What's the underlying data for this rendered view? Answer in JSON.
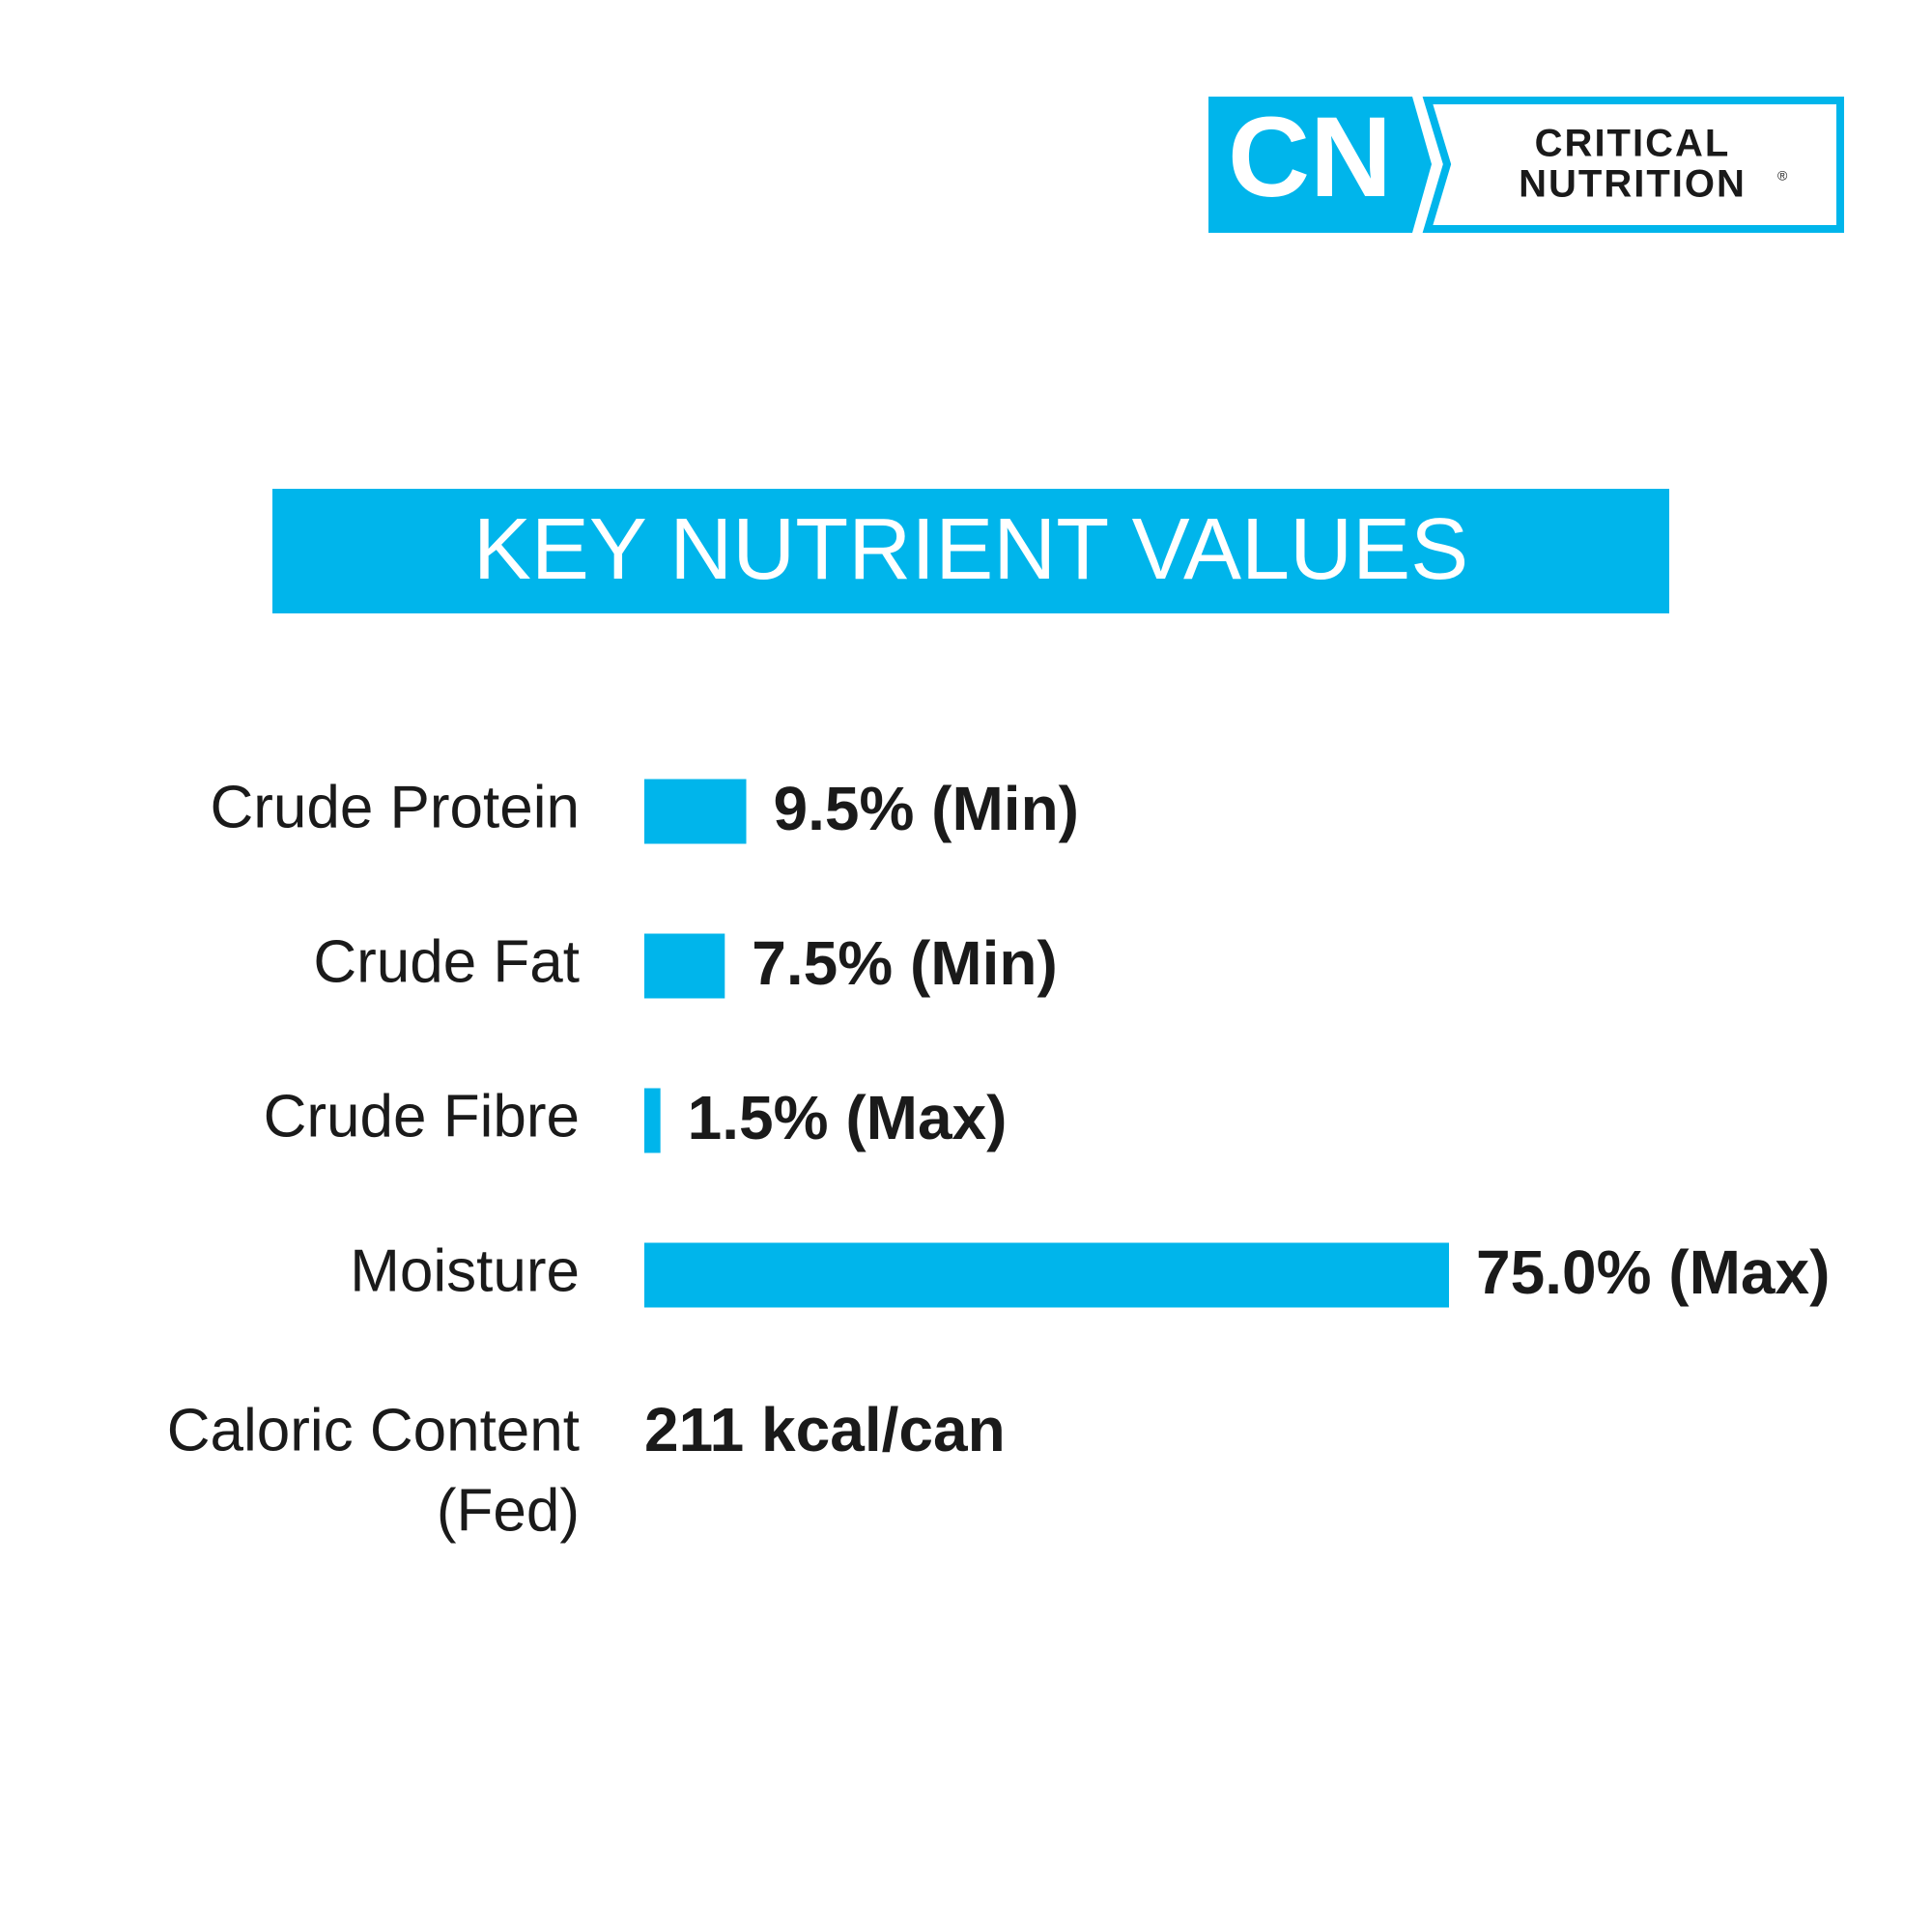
{
  "logo": {
    "mark": "CN",
    "line1": "CRITICAL",
    "line2": "NUTRITION",
    "reg": "®"
  },
  "chart_data": {
    "type": "bar",
    "orientation": "horizontal",
    "title": "KEY NUTRIENT VALUES",
    "categories": [
      "Crude Protein",
      "Crude Fat",
      "Crude Fibre",
      "Moisture"
    ],
    "values": [
      9.5,
      7.5,
      1.5,
      75.0
    ],
    "value_labels": [
      "9.5% (Min)",
      "7.5% (Min)",
      "1.5% (Max)",
      "75.0% (Max)"
    ],
    "color": "#00b5eb"
  },
  "caloric": {
    "label_lines": [
      "Caloric Content",
      "(Fed)"
    ],
    "value": "211 kcal/can"
  }
}
